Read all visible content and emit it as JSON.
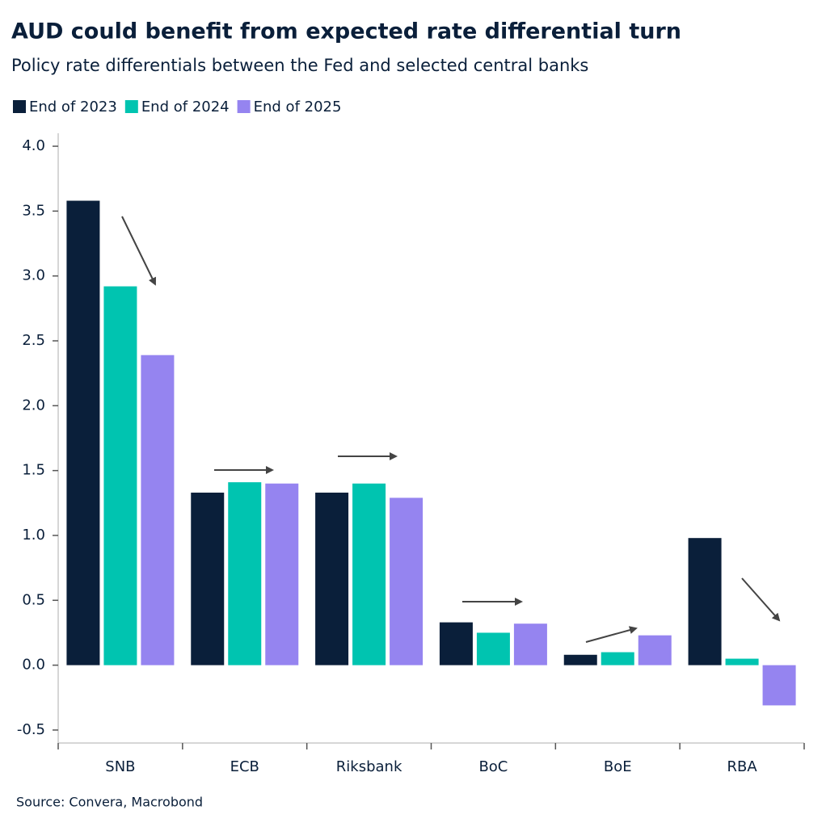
{
  "chart_data": {
    "type": "bar",
    "title": "AUD could benefit from expected rate differential turn",
    "subtitle": "Policy rate differentials between the Fed and selected central banks",
    "source": "Source: Convera, Macrobond",
    "categories": [
      "SNB",
      "ECB",
      "Riksbank",
      "BoC",
      "BoE",
      "RBA"
    ],
    "series": [
      {
        "name": "End of 2023",
        "color": "#0a1f3a",
        "values": [
          3.58,
          1.33,
          1.33,
          0.33,
          0.08,
          0.98
        ]
      },
      {
        "name": "End of 2024",
        "color": "#00c4b0",
        "values": [
          2.92,
          1.41,
          1.4,
          0.25,
          0.1,
          0.05
        ]
      },
      {
        "name": "End of 2025",
        "color": "#9584f0",
        "values": [
          2.39,
          1.4,
          1.29,
          0.32,
          0.23,
          -0.31
        ]
      }
    ],
    "ylim": [
      -0.6,
      4.1
    ],
    "yticks": [
      -0.5,
      {
        "value": 0,
        "label": "0.0"
      },
      0.5,
      {
        "value": 1,
        "label": "1.0"
      },
      1.5,
      {
        "value": 2,
        "label": "2.0"
      },
      2.5,
      {
        "value": 3,
        "label": "3.0"
      },
      3.5,
      {
        "value": 4,
        "label": "4.0"
      }
    ],
    "legend": "top-left",
    "grid": false
  }
}
